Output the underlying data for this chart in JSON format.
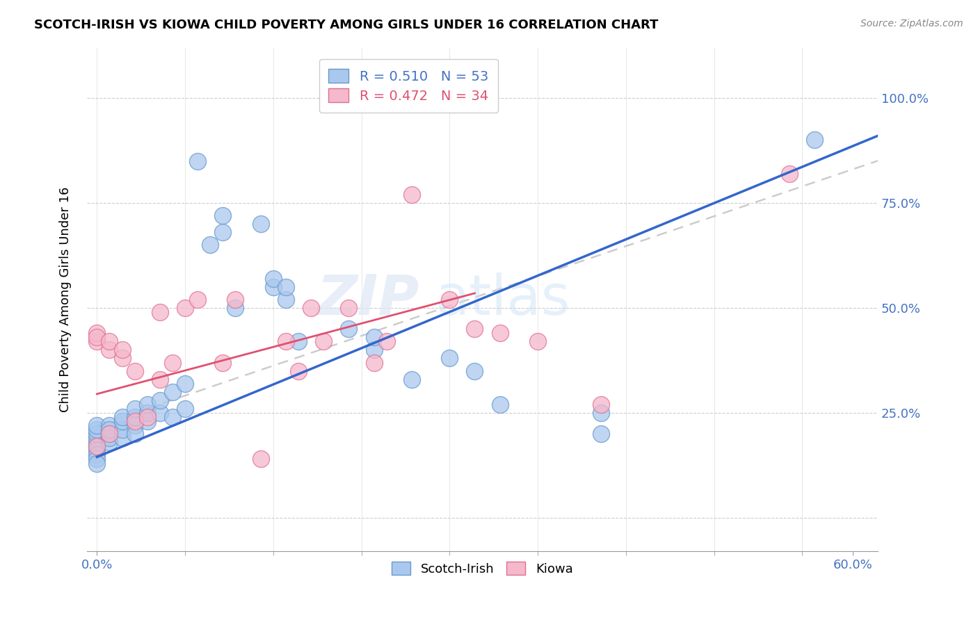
{
  "title": "SCOTCH-IRISH VS KIOWA CHILD POVERTY AMONG GIRLS UNDER 16 CORRELATION CHART",
  "source": "Source: ZipAtlas.com",
  "ylabel": "Child Poverty Among Girls Under 16",
  "xlabel_major_ticks": [
    0.0,
    0.1,
    0.2,
    0.3,
    0.4,
    0.5,
    0.6
  ],
  "xlabel_major_labels": [
    "0.0%",
    "",
    "",
    "",
    "",
    "",
    "60.0%"
  ],
  "xlabel_minor_ticks": [
    0.0,
    0.07,
    0.14,
    0.21,
    0.28,
    0.35,
    0.42,
    0.49,
    0.56
  ],
  "ylabel_ticks": [
    0.0,
    0.25,
    0.5,
    0.75,
    1.0
  ],
  "ylabel_labels": [
    "",
    "25.0%",
    "50.0%",
    "75.0%",
    "100.0%"
  ],
  "xlim": [
    -0.008,
    0.62
  ],
  "ylim": [
    -0.08,
    1.12
  ],
  "scotch_irish_R": 0.51,
  "scotch_irish_N": 53,
  "kiowa_R": 0.472,
  "kiowa_N": 34,
  "scotch_irish_color": "#aac8ee",
  "scotch_irish_edge": "#6699cc",
  "kiowa_color": "#f5b8cc",
  "kiowa_edge": "#e07090",
  "scotch_irish_line_color": "#3366cc",
  "kiowa_line_color": "#e05070",
  "trend_dash_color": "#cccccc",
  "watermark_zip": "ZIP",
  "watermark_atlas": "atlas",
  "scotch_irish_x": [
    0.0,
    0.0,
    0.0,
    0.0,
    0.0,
    0.0,
    0.0,
    0.0,
    0.0,
    0.0,
    0.01,
    0.01,
    0.01,
    0.01,
    0.01,
    0.02,
    0.02,
    0.02,
    0.02,
    0.03,
    0.03,
    0.03,
    0.03,
    0.04,
    0.04,
    0.04,
    0.05,
    0.05,
    0.06,
    0.06,
    0.07,
    0.07,
    0.08,
    0.09,
    0.1,
    0.1,
    0.11,
    0.13,
    0.14,
    0.14,
    0.15,
    0.15,
    0.16,
    0.2,
    0.22,
    0.22,
    0.25,
    0.28,
    0.3,
    0.32,
    0.4,
    0.4,
    0.57
  ],
  "scotch_irish_y": [
    0.17,
    0.18,
    0.19,
    0.2,
    0.21,
    0.22,
    0.16,
    0.15,
    0.14,
    0.13,
    0.18,
    0.2,
    0.22,
    0.19,
    0.21,
    0.19,
    0.21,
    0.23,
    0.24,
    0.22,
    0.24,
    0.2,
    0.26,
    0.23,
    0.25,
    0.27,
    0.25,
    0.28,
    0.24,
    0.3,
    0.26,
    0.32,
    0.85,
    0.65,
    0.68,
    0.72,
    0.5,
    0.7,
    0.55,
    0.57,
    0.52,
    0.55,
    0.42,
    0.45,
    0.4,
    0.43,
    0.33,
    0.38,
    0.35,
    0.27,
    0.2,
    0.25,
    0.9
  ],
  "kiowa_x": [
    0.0,
    0.0,
    0.0,
    0.0,
    0.01,
    0.01,
    0.01,
    0.02,
    0.02,
    0.03,
    0.03,
    0.04,
    0.05,
    0.05,
    0.06,
    0.07,
    0.08,
    0.1,
    0.11,
    0.13,
    0.15,
    0.16,
    0.17,
    0.18,
    0.2,
    0.22,
    0.23,
    0.25,
    0.28,
    0.3,
    0.32,
    0.35,
    0.4,
    0.55
  ],
  "kiowa_y": [
    0.42,
    0.44,
    0.43,
    0.17,
    0.4,
    0.42,
    0.2,
    0.38,
    0.4,
    0.35,
    0.23,
    0.24,
    0.49,
    0.33,
    0.37,
    0.5,
    0.52,
    0.37,
    0.52,
    0.14,
    0.42,
    0.35,
    0.5,
    0.42,
    0.5,
    0.37,
    0.42,
    0.77,
    0.52,
    0.45,
    0.44,
    0.42,
    0.27,
    0.82
  ]
}
